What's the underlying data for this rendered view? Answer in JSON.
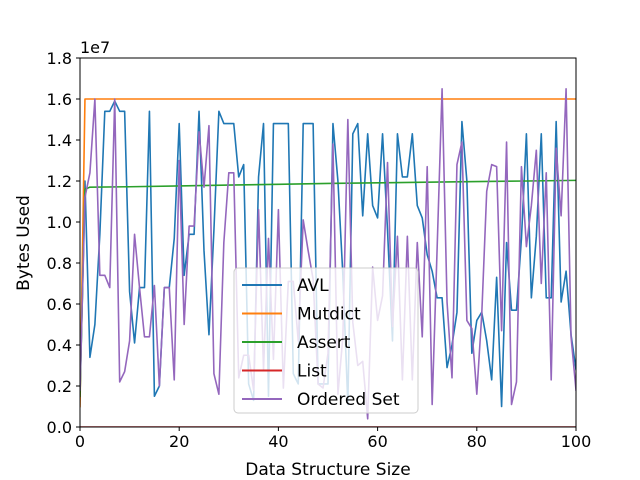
{
  "chart_data": {
    "type": "line",
    "xlabel": "Data Structure Size",
    "ylabel": "Bytes Used",
    "offset_text": "1e7",
    "xlim": [
      0,
      100
    ],
    "ylim": [
      0,
      18000000
    ],
    "x_ticks": [
      0,
      20,
      40,
      60,
      80,
      100
    ],
    "x_tick_labels": [
      "0",
      "20",
      "40",
      "60",
      "80",
      "100"
    ],
    "y_ticks": [
      0,
      2000000,
      4000000,
      6000000,
      8000000,
      10000000,
      12000000,
      14000000,
      16000000,
      18000000
    ],
    "y_tick_labels": [
      "0.0",
      "0.2",
      "0.4",
      "0.6",
      "0.8",
      "1.0",
      "1.2",
      "1.4",
      "1.6",
      "1.8"
    ],
    "grid": false,
    "legend_position": "lower-center",
    "series": [
      {
        "name": "AVL",
        "color": "#1f77b4",
        "x": [
          0,
          1,
          2,
          3,
          4,
          5,
          6,
          7,
          8,
          9,
          10,
          11,
          12,
          13,
          14,
          15,
          16,
          17,
          18,
          19,
          20,
          21,
          22,
          23,
          24,
          25,
          26,
          27,
          28,
          29,
          30,
          31,
          32,
          33,
          34,
          35,
          36,
          37,
          38,
          39,
          40,
          41,
          42,
          43,
          44,
          45,
          46,
          47,
          48,
          49,
          50,
          51,
          52,
          53,
          54,
          55,
          56,
          57,
          58,
          59,
          60,
          61,
          62,
          63,
          64,
          65,
          66,
          67,
          68,
          69,
          70,
          71,
          72,
          73,
          74,
          75,
          76,
          77,
          78,
          79,
          80,
          81,
          82,
          83,
          84,
          85,
          86,
          87,
          88,
          89,
          90,
          91,
          92,
          93,
          94,
          95,
          96,
          97,
          98,
          99,
          100
        ],
        "values": [
          1500000,
          12000000,
          3400000,
          5000000,
          9400000,
          15400000,
          15400000,
          15900000,
          15400000,
          15400000,
          6600000,
          4100000,
          6800000,
          6800000,
          15400000,
          1500000,
          2000000,
          6800000,
          6800000,
          9200000,
          14800000,
          7400000,
          9400000,
          9400000,
          15400000,
          8600000,
          4500000,
          9600000,
          15400000,
          14800000,
          14800000,
          14800000,
          12200000,
          12800000,
          2100000,
          1300000,
          12200000,
          14800000,
          1500000,
          14800000,
          14800000,
          14800000,
          14800000,
          2600000,
          2100000,
          14800000,
          14800000,
          14800000,
          2100000,
          2100000,
          2100000,
          14800000,
          12000000,
          7400000,
          1100000,
          14300000,
          14800000,
          10300000,
          14300000,
          10800000,
          10200000,
          14300000,
          9600000,
          4200000,
          14300000,
          12200000,
          12200000,
          14300000,
          10800000,
          10200000,
          8400000,
          7600000,
          6300000,
          6300000,
          2900000,
          4000000,
          5600000,
          14900000,
          12000000,
          3600000,
          5200000,
          5600000,
          4200000,
          2300000,
          7300000,
          1000000,
          9000000,
          5700000,
          5700000,
          9200000,
          14300000,
          6300000,
          9300000,
          14300000,
          6300000,
          6300000,
          14900000,
          6100000,
          7600000,
          4500000,
          2800000
        ]
      },
      {
        "name": "Mutdict",
        "color": "#ff7f0e",
        "x": [
          0,
          1,
          2,
          10,
          20,
          30,
          40,
          50,
          60,
          70,
          80,
          90,
          100
        ],
        "values": [
          1000000,
          16000000,
          16000000,
          16000000,
          16000000,
          16000000,
          16000000,
          16000000,
          16000000,
          16000000,
          16000000,
          16000000,
          16000000
        ]
      },
      {
        "name": "Assert",
        "color": "#2ca02c",
        "x": [
          0,
          1,
          2,
          10,
          20,
          30,
          40,
          50,
          60,
          70,
          80,
          90,
          100
        ],
        "values": [
          1500000,
          11600000,
          11700000,
          11720000,
          11760000,
          11800000,
          11840000,
          11880000,
          11910000,
          11940000,
          11970000,
          12000000,
          12030000
        ]
      },
      {
        "name": "List",
        "color": "#d62728",
        "x": [
          0,
          10,
          20,
          30,
          40,
          50,
          60,
          70,
          80,
          90,
          100
        ],
        "values": [
          0,
          0,
          0,
          0,
          0,
          0,
          0,
          0,
          0,
          0,
          0
        ]
      },
      {
        "name": "Ordered Set",
        "color": "#9467bd",
        "x": [
          0,
          1,
          2,
          3,
          4,
          5,
          6,
          7,
          8,
          9,
          10,
          11,
          12,
          13,
          14,
          15,
          16,
          17,
          18,
          19,
          20,
          21,
          22,
          23,
          24,
          25,
          26,
          27,
          28,
          29,
          30,
          31,
          32,
          33,
          34,
          35,
          36,
          37,
          38,
          39,
          40,
          41,
          42,
          43,
          44,
          45,
          46,
          47,
          48,
          49,
          50,
          51,
          52,
          53,
          54,
          55,
          56,
          57,
          58,
          59,
          60,
          61,
          62,
          63,
          64,
          65,
          66,
          67,
          68,
          69,
          70,
          71,
          72,
          73,
          74,
          75,
          76,
          77,
          78,
          79,
          80,
          81,
          82,
          83,
          84,
          85,
          86,
          87,
          88,
          89,
          90,
          91,
          92,
          93,
          94,
          95,
          96,
          97,
          98,
          99,
          100
        ],
        "values": [
          1800000,
          11200000,
          12400000,
          16000000,
          7400000,
          7400000,
          6800000,
          16000000,
          2200000,
          2700000,
          4200000,
          9400000,
          6800000,
          4400000,
          4400000,
          6900000,
          2000000,
          6800000,
          6800000,
          2300000,
          13000000,
          5000000,
          9800000,
          9800000,
          14400000,
          11700000,
          14700000,
          2600000,
          1600000,
          9000000,
          12400000,
          12400000,
          2400000,
          3500000,
          3500000,
          1800000,
          10600000,
          2800000,
          9200000,
          3300000,
          10600000,
          1900000,
          7100000,
          7100000,
          4200000,
          10100000,
          8600000,
          7200000,
          2100000,
          1900000,
          3600000,
          13800000,
          1600000,
          4400000,
          15000000,
          5100000,
          3000000,
          3200000,
          400000,
          7800000,
          5200000,
          6400000,
          12900000,
          4900000,
          9300000,
          2300000,
          9300000,
          2300000,
          9000000,
          4400000,
          12700000,
          1100000,
          8700000,
          16500000,
          6100000,
          2400000,
          12800000,
          13900000,
          5200000,
          4800000,
          1600000,
          5500000,
          11500000,
          12800000,
          12700000,
          4700000,
          13900000,
          1100000,
          2200000,
          12700000,
          8800000,
          10800000,
          13500000,
          7000000,
          12400000,
          2300000,
          13600000,
          10300000,
          16500000,
          4400000,
          1800000
        ]
      }
    ]
  }
}
